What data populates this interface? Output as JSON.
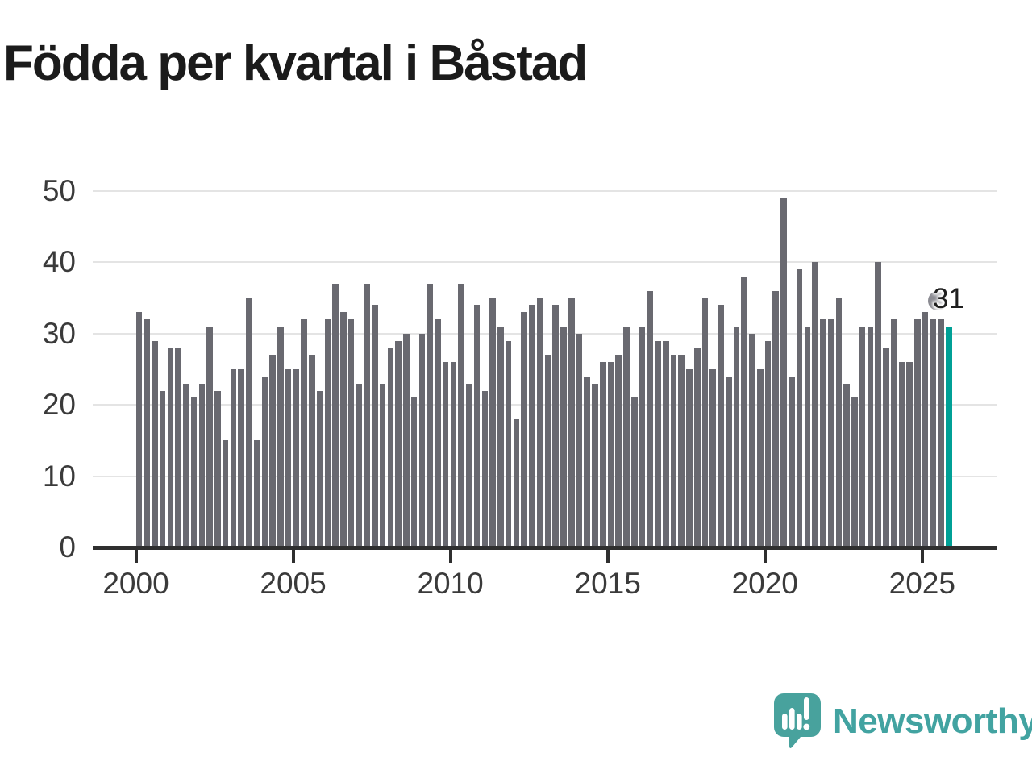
{
  "title": "Födda per kvartal i Båstad",
  "chart_data": {
    "type": "bar",
    "title": "Födda per kvartal i Båstad",
    "x_start": "2000 Q1",
    "x_end": "2025 Q4",
    "quarters_per_year": 4,
    "start_year": 2000,
    "values": [
      33,
      32,
      29,
      22,
      28,
      28,
      23,
      21,
      23,
      31,
      22,
      15,
      25,
      25,
      35,
      15,
      24,
      27,
      31,
      25,
      25,
      32,
      27,
      22,
      32,
      37,
      33,
      32,
      23,
      37,
      34,
      23,
      28,
      29,
      30,
      21,
      30,
      37,
      32,
      26,
      26,
      37,
      23,
      34,
      22,
      35,
      31,
      29,
      18,
      33,
      34,
      35,
      27,
      34,
      31,
      35,
      30,
      24,
      23,
      26,
      26,
      27,
      31,
      21,
      31,
      36,
      29,
      29,
      27,
      27,
      25,
      28,
      35,
      25,
      34,
      24,
      31,
      38,
      30,
      25,
      29,
      36,
      49,
      24,
      39,
      31,
      40,
      32,
      32,
      35,
      23,
      21,
      31,
      31,
      40,
      28,
      32,
      26,
      26,
      32,
      33,
      32,
      32,
      31
    ],
    "x_tick_labels": [
      "2000",
      "2005",
      "2010",
      "2015",
      "2020",
      "2025"
    ],
    "y_tick_labels": [
      "0",
      "10",
      "20",
      "30",
      "40",
      "50"
    ],
    "ylim": [
      0,
      50
    ],
    "grid": "horizontal",
    "legend": "none",
    "bar_color": "#696970",
    "highlight_color": "#00a096",
    "highlight_index": 103,
    "last_value_label": "31"
  },
  "branding": {
    "name": "Newsworthy",
    "logo_icon": "newsworthy-speech-bubble-chart-icon",
    "logo_color": "#48a29d",
    "text_color": "#42a3a1"
  },
  "colors": {
    "background": "#ffffff",
    "bar": "#696970",
    "highlight": "#00a096",
    "gridline": "#e4e4e4",
    "axis": "#2f2f2f",
    "title_text": "#1b1b1b",
    "axis_text": "#3a3a3a"
  }
}
